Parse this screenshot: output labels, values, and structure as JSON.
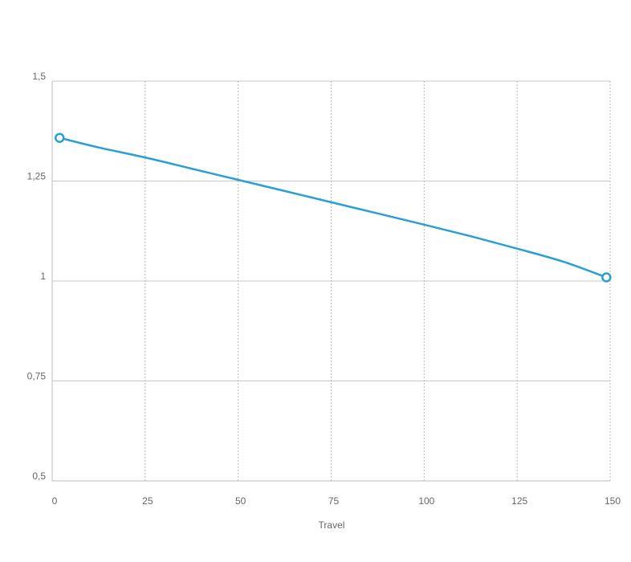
{
  "chart_data": {
    "type": "line",
    "title": "",
    "xlabel": "Travel",
    "ylabel": "",
    "xlim": [
      0,
      150
    ],
    "ylim": [
      0.5,
      1.5
    ],
    "x_ticks": [
      0,
      25,
      50,
      75,
      100,
      125,
      150
    ],
    "x_tick_labels": [
      "0",
      "25",
      "50",
      "75",
      "100",
      "125",
      "150"
    ],
    "y_ticks": [
      0.5,
      0.75,
      1,
      1.25,
      1.5
    ],
    "y_tick_labels": [
      "0,5",
      "0,75",
      "1",
      "1,25",
      "1,5"
    ],
    "grid": {
      "x": "dotted",
      "y": "solid"
    },
    "legend": "none",
    "series": [
      {
        "color": "#2a9fd6",
        "x": [
          2,
          12.5,
          25,
          37.5,
          50,
          62.5,
          75,
          87.5,
          100,
          112.5,
          125,
          137.5,
          149
        ],
        "y": [
          1.358,
          1.334,
          1.309,
          1.281,
          1.253,
          1.225,
          1.197,
          1.169,
          1.141,
          1.112,
          1.081,
          1.048,
          1.009
        ],
        "markers": [
          {
            "x": 2,
            "y": 1.358
          },
          {
            "x": 149,
            "y": 1.009
          }
        ]
      }
    ]
  }
}
